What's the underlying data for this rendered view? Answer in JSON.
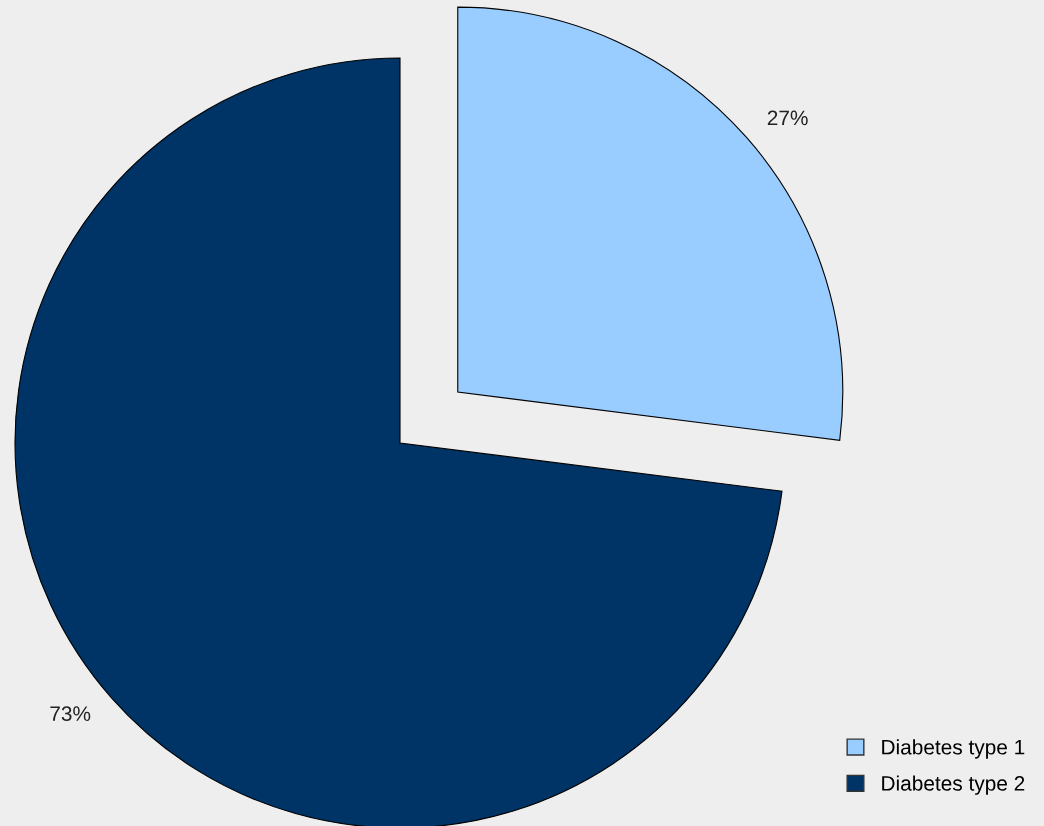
{
  "chart_data": {
    "type": "pie",
    "categories": [
      "Diabetes type 1",
      "Diabetes type 2"
    ],
    "values": [
      27,
      73
    ],
    "colors": [
      "#99ccff",
      "#003366"
    ],
    "value_labels": [
      "27%",
      "73%"
    ],
    "legend": "bottom right"
  }
}
